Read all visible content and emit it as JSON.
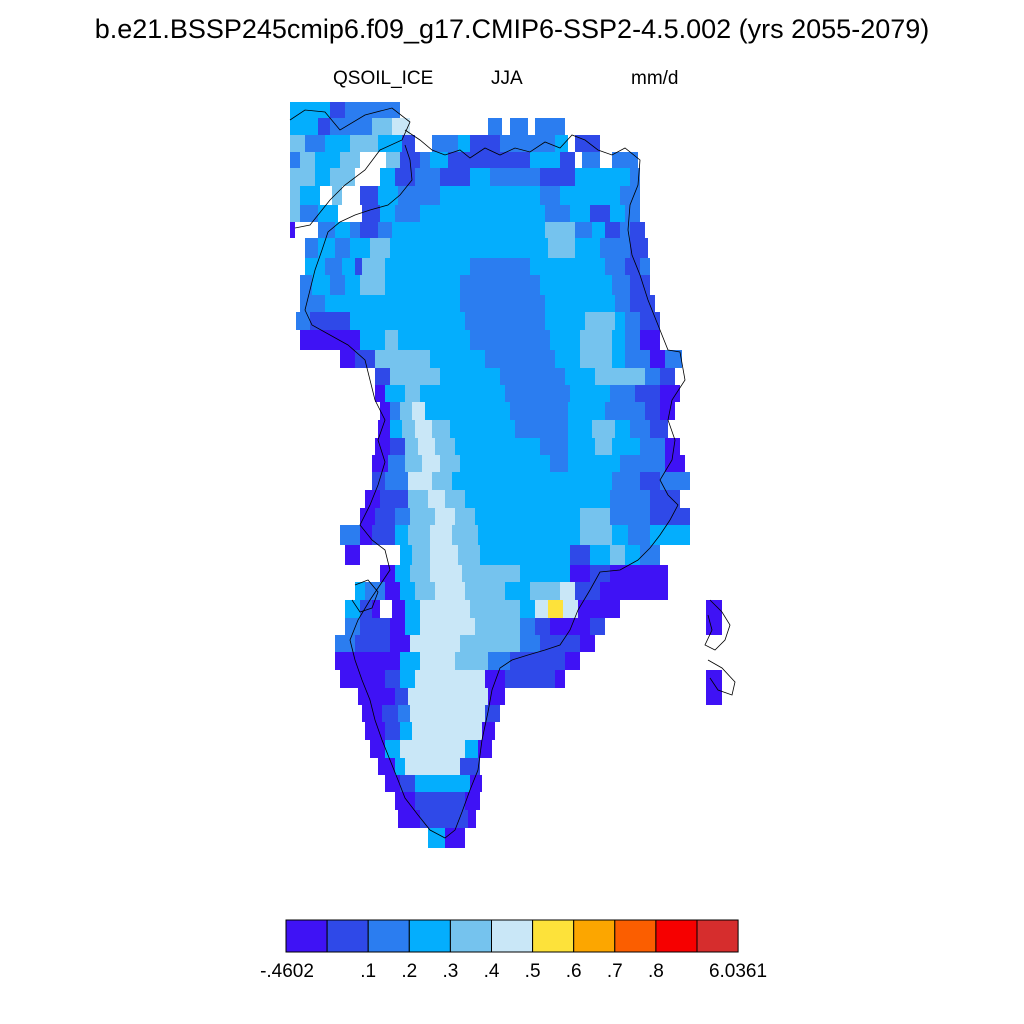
{
  "header": {
    "title": "b.e21.BSSP245cmip6.f09_g17.CMIP6-SSP2-4.5.002 (yrs 2055-2079)",
    "variable": "QSOIL_ICE",
    "season": "JJA",
    "units": "mm/d"
  },
  "map": {
    "region": "Greenland",
    "palette": [
      "#3f12f5",
      "#2f49e8",
      "#2b7df0",
      "#04aefd",
      "#75c3ee",
      "#c9e7f7",
      "#fde23a",
      "#fca600",
      "#fb5e00",
      "#f60000",
      "#d62d2d"
    ]
  },
  "colorbar": {
    "colors": [
      "#3f12f5",
      "#2f49e8",
      "#2b7df0",
      "#04aefd",
      "#75c3ee",
      "#c9e7f7",
      "#fde23a",
      "#fca600",
      "#fb5e00",
      "#f60000",
      "#d62d2d"
    ],
    "labels": [
      "-.4602",
      ".1",
      ".2",
      ".3",
      ".4",
      ".5",
      ".6",
      ".7",
      ".8",
      "6.0361"
    ]
  }
}
